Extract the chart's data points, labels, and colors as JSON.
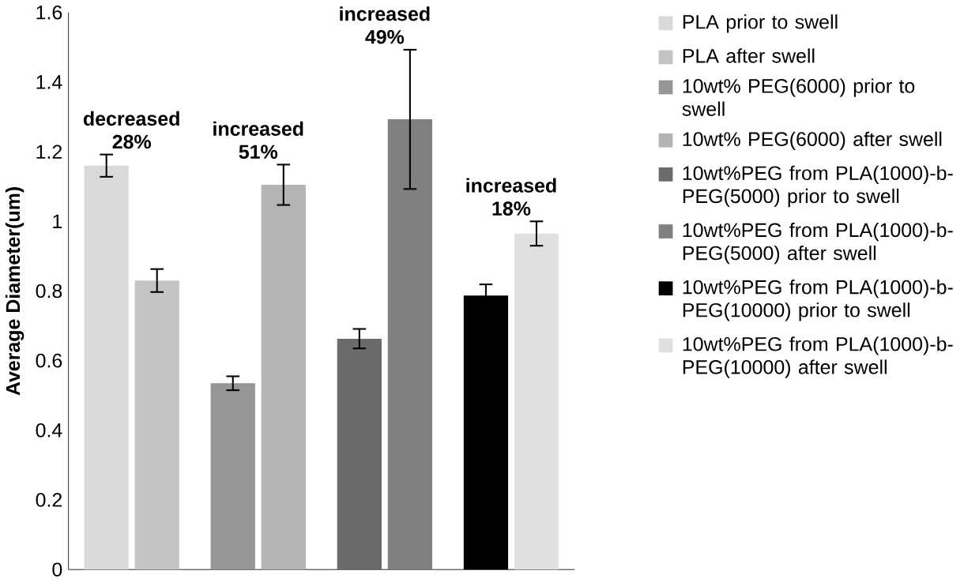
{
  "chart_data": {
    "type": "bar",
    "ylabel": "Average Diameter(um)",
    "categories": [
      null,
      null,
      null,
      null
    ],
    "series": [
      {
        "name": "PLA prior to swell",
        "color": "#d9d9d9",
        "values": [
          1.16,
          null,
          null,
          null
        ],
        "errors": [
          0.032,
          null,
          null,
          null
        ]
      },
      {
        "name": "PLA after swell",
        "color": "#c4c4c4",
        "values": [
          0.83,
          null,
          null,
          null
        ],
        "errors": [
          0.033,
          null,
          null,
          null
        ]
      },
      {
        "name": "10wt% PEG(6000) prior to swell",
        "color": "#969696",
        "values": [
          null,
          0.535,
          null,
          null
        ],
        "errors": [
          null,
          0.02,
          null,
          null
        ]
      },
      {
        "name": "10wt% PEG(6000) after swell",
        "color": "#b4b4b4",
        "values": [
          null,
          1.105,
          null,
          null
        ],
        "errors": [
          null,
          0.058,
          null,
          null
        ]
      },
      {
        "name": "10wt%PEG from PLA(1000)-b-PEG(5000) prior to swell",
        "color": "#6b6b6b",
        "values": [
          null,
          null,
          0.663,
          null
        ],
        "errors": [
          null,
          null,
          0.028,
          null
        ]
      },
      {
        "name": "10wt%PEG from PLA(1000)-b-PEG(5000) after swell",
        "color": "#808080",
        "values": [
          null,
          null,
          1.293,
          null
        ],
        "errors": [
          null,
          null,
          0.2,
          null
        ]
      },
      {
        "name": "10wt%PEG from PLA(1000)-b-PEG(10000) prior to swell",
        "color": "#000000",
        "values": [
          null,
          null,
          null,
          0.787
        ],
        "errors": [
          null,
          null,
          null,
          0.032
        ]
      },
      {
        "name": "10wt%PEG from PLA(1000)-b-PEG(10000) after swell",
        "color": "#e0e0e0",
        "values": [
          null,
          null,
          null,
          0.965
        ],
        "errors": [
          null,
          null,
          null,
          0.035
        ]
      }
    ],
    "annotations": [
      "decreased 28%",
      "increased 51%",
      "increased 49%",
      "increased 18%"
    ],
    "ylim": [
      0,
      1.6
    ],
    "yticks": [
      0,
      0.2,
      0.4,
      0.6,
      0.8,
      1,
      1.2,
      1.4,
      1.6
    ],
    "grid": false,
    "legend": "right"
  }
}
